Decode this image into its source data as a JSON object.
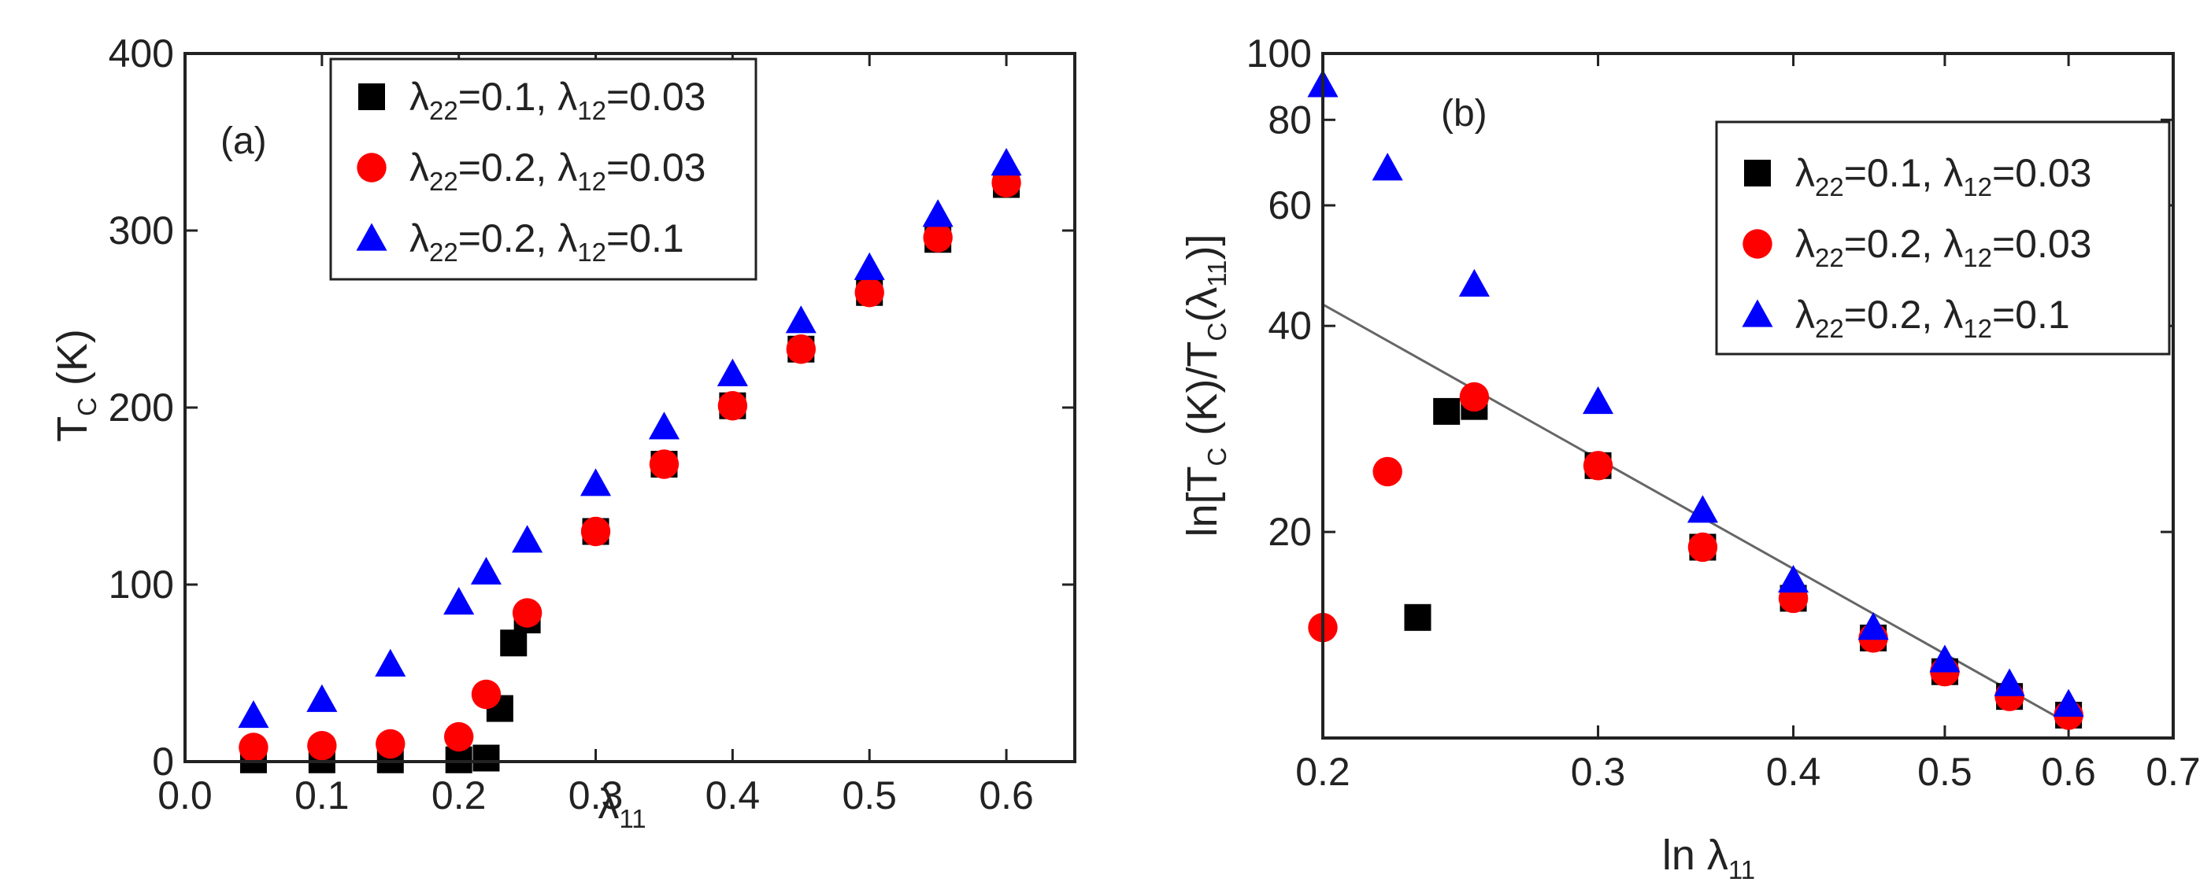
{
  "chart_data": [
    {
      "panel_label": "(a)",
      "type": "scatter",
      "xlabel": "λ",
      "xlabel_sub": "11",
      "ylabel": "T",
      "ylabel_sub": "C",
      "ylabel_suffix": " (K)",
      "xlim": [
        0.0,
        0.65
      ],
      "ylim": [
        0,
        400
      ],
      "x_ticks": [
        0.0,
        0.1,
        0.2,
        0.3,
        0.4,
        0.5,
        0.6
      ],
      "x_tick_labels": [
        "0.0",
        "0.1",
        "0.2",
        "0.3",
        "0.4",
        "0.5",
        "0.6"
      ],
      "y_ticks": [
        0,
        100,
        200,
        300,
        400
      ],
      "y_tick_labels": [
        "0",
        "100",
        "200",
        "300",
        "400"
      ],
      "legend_position": "top-center",
      "series": [
        {
          "name": "λ22=0.1, λ12=0.03",
          "label_parts": [
            "λ",
            "22",
            "=0.1, λ",
            "12",
            "=0.03"
          ],
          "marker": "square",
          "color": "#000000",
          "points": [
            [
              0.05,
              1
            ],
            [
              0.1,
              1
            ],
            [
              0.15,
              1
            ],
            [
              0.2,
              1
            ],
            [
              0.22,
              2
            ],
            [
              0.23,
              30
            ],
            [
              0.24,
              67
            ],
            [
              0.25,
              80
            ],
            [
              0.3,
              130
            ],
            [
              0.35,
              168
            ],
            [
              0.4,
              201
            ],
            [
              0.45,
              233
            ],
            [
              0.5,
              265
            ],
            [
              0.55,
              295
            ],
            [
              0.6,
              326
            ]
          ]
        },
        {
          "name": "λ22=0.2, λ12=0.03",
          "label_parts": [
            "λ",
            "22",
            "=0.2, λ",
            "12",
            "=0.03"
          ],
          "marker": "circle",
          "color": "#ff0000",
          "points": [
            [
              0.05,
              8
            ],
            [
              0.1,
              9
            ],
            [
              0.15,
              10
            ],
            [
              0.2,
              14
            ],
            [
              0.22,
              38
            ],
            [
              0.25,
              84
            ],
            [
              0.3,
              130
            ],
            [
              0.35,
              168
            ],
            [
              0.4,
              201
            ],
            [
              0.45,
              233
            ],
            [
              0.5,
              265
            ],
            [
              0.55,
              296
            ],
            [
              0.6,
              327
            ]
          ]
        },
        {
          "name": "λ22=0.2, λ12=0.1",
          "label_parts": [
            "λ",
            "22",
            "=0.2, λ",
            "12",
            "=0.1"
          ],
          "marker": "triangle",
          "color": "#0000ff",
          "points": [
            [
              0.05,
              26
            ],
            [
              0.1,
              35
            ],
            [
              0.15,
              55
            ],
            [
              0.2,
              90
            ],
            [
              0.22,
              107
            ],
            [
              0.25,
              125
            ],
            [
              0.3,
              157
            ],
            [
              0.35,
              189
            ],
            [
              0.4,
              219
            ],
            [
              0.45,
              249
            ],
            [
              0.5,
              279
            ],
            [
              0.55,
              309
            ],
            [
              0.6,
              338
            ]
          ]
        }
      ]
    },
    {
      "panel_label": "(b)",
      "type": "scatter",
      "xscale": "log",
      "yscale": "log",
      "xlabel": "ln λ",
      "xlabel_sub": "11",
      "ylabel": "ln[T",
      "ylabel_sub": "C",
      "ylabel_mid": " (K)/T",
      "ylabel_sub2": "C",
      "ylabel_mid2": "(λ",
      "ylabel_sub3": "11",
      "ylabel_end": ")]",
      "xlim": [
        0.2,
        0.7
      ],
      "ylim": [
        10,
        100
      ],
      "x_ticks": [
        0.2,
        0.3,
        0.4,
        0.5,
        0.6,
        0.7
      ],
      "x_tick_labels": [
        "0.2",
        "0.3",
        "0.4",
        "0.5",
        "0.6",
        "0.7"
      ],
      "y_ticks": [
        20,
        40,
        60,
        80,
        100
      ],
      "y_tick_labels": [
        "20",
        "40",
        "60",
        "80",
        "100"
      ],
      "legend_position": "right",
      "fit_line": {
        "x": [
          0.2,
          0.6
        ],
        "y": [
          43,
          10.5
        ]
      },
      "series": [
        {
          "name": "λ22=0.1, λ12=0.03",
          "label_parts": [
            "λ",
            "22",
            "=0.1, λ",
            "12",
            "=0.03"
          ],
          "marker": "square",
          "color": "#000000",
          "points": [
            [
              0.23,
              15
            ],
            [
              0.24,
              30
            ],
            [
              0.25,
              30.5
            ],
            [
              0.3,
              25
            ],
            [
              0.35,
              19
            ],
            [
              0.4,
              16
            ],
            [
              0.45,
              14
            ],
            [
              0.5,
              12.5
            ],
            [
              0.55,
              11.5
            ],
            [
              0.6,
              10.8
            ]
          ]
        },
        {
          "name": "λ22=0.2, λ12=0.03",
          "label_parts": [
            "λ",
            "22",
            "=0.2, λ",
            "12",
            "=0.03"
          ],
          "marker": "circle",
          "color": "#ff0000",
          "points": [
            [
              0.2,
              14.5
            ],
            [
              0.22,
              24.5
            ],
            [
              0.25,
              31.5
            ],
            [
              0.3,
              25
            ],
            [
              0.35,
              19
            ],
            [
              0.4,
              16
            ],
            [
              0.45,
              14
            ],
            [
              0.5,
              12.5
            ],
            [
              0.55,
              11.5
            ],
            [
              0.6,
              10.8
            ]
          ]
        },
        {
          "name": "λ22=0.2, λ12=0.1",
          "label_parts": [
            "λ",
            "22",
            "=0.2, λ",
            "12",
            "=0.1"
          ],
          "marker": "triangle",
          "color": "#0000ff",
          "points": [
            [
              0.2,
              90
            ],
            [
              0.22,
              68
            ],
            [
              0.25,
              46
            ],
            [
              0.3,
              31
            ],
            [
              0.35,
              21.5
            ],
            [
              0.4,
              17
            ],
            [
              0.45,
              14.5
            ],
            [
              0.5,
              13
            ],
            [
              0.55,
              12
            ],
            [
              0.6,
              11.2
            ]
          ]
        }
      ]
    }
  ]
}
